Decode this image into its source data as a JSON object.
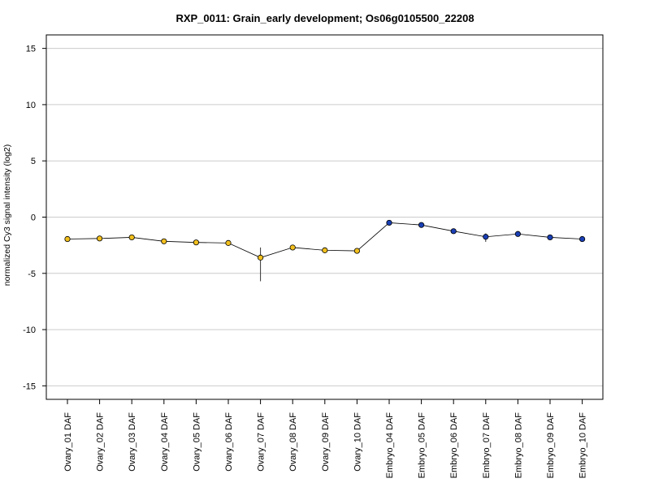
{
  "chart_data": {
    "type": "line",
    "title": "RXP_0011: Grain_early development; Os06g0105500_22208",
    "xlabel": "",
    "ylabel": "normalized Cy3 signal intensity (log2)",
    "ylim": [
      -16.2,
      16.2
    ],
    "yticks": [
      -15,
      -10,
      -5,
      0,
      5,
      10,
      15
    ],
    "ytick_labels": [
      "-15",
      "-10",
      "-5",
      "0",
      "5",
      "10",
      "15"
    ],
    "grid": true,
    "categories": [
      "Ovary_01 DAF",
      "Ovary_02 DAF",
      "Ovary_03 DAF",
      "Ovary_04 DAF",
      "Ovary_05 DAF",
      "Ovary_06 DAF",
      "Ovary_07 DAF",
      "Ovary_08 DAF",
      "Ovary_09 DAF",
      "Ovary_10 DAF",
      "Embryo_04 DAF",
      "Embryo_05 DAF",
      "Embryo_06 DAF",
      "Embryo_07 DAF",
      "Embryo_08 DAF",
      "Embryo_09 DAF",
      "Embryo_10 DAF"
    ],
    "series": [
      {
        "values": [
          -1.95,
          -1.9,
          -1.8,
          -2.15,
          -2.25,
          -2.3,
          -3.6,
          -2.7,
          -2.95,
          -3.0,
          -0.5,
          -0.7,
          -1.25,
          -1.75,
          -1.5,
          -1.8,
          -1.95
        ],
        "error_low": [
          0.1,
          0.1,
          0.1,
          0.1,
          0.1,
          0.1,
          2.1,
          0.15,
          0.1,
          0.1,
          0.1,
          0.1,
          0.12,
          0.45,
          0.1,
          0.2,
          0.1
        ],
        "error_high": [
          0.1,
          0.1,
          0.1,
          0.1,
          0.1,
          0.1,
          0.9,
          0.15,
          0.1,
          0.1,
          0.1,
          0.1,
          0.12,
          0.3,
          0.1,
          0.2,
          0.1
        ],
        "point_colors": [
          "#f2c01e",
          "#f2c01e",
          "#f2c01e",
          "#f2c01e",
          "#f2c01e",
          "#f2c01e",
          "#f2c01e",
          "#f2c01e",
          "#f2c01e",
          "#f2c01e",
          "#1a3fb5",
          "#1a3fb5",
          "#1a3fb5",
          "#1a3fb5",
          "#1a3fb5",
          "#1a3fb5",
          "#1a3fb5"
        ]
      }
    ],
    "colors": {
      "ovary": "#f2c01e",
      "embryo": "#1a3fb5",
      "line": "#000000",
      "grid": "#cccccc"
    }
  }
}
